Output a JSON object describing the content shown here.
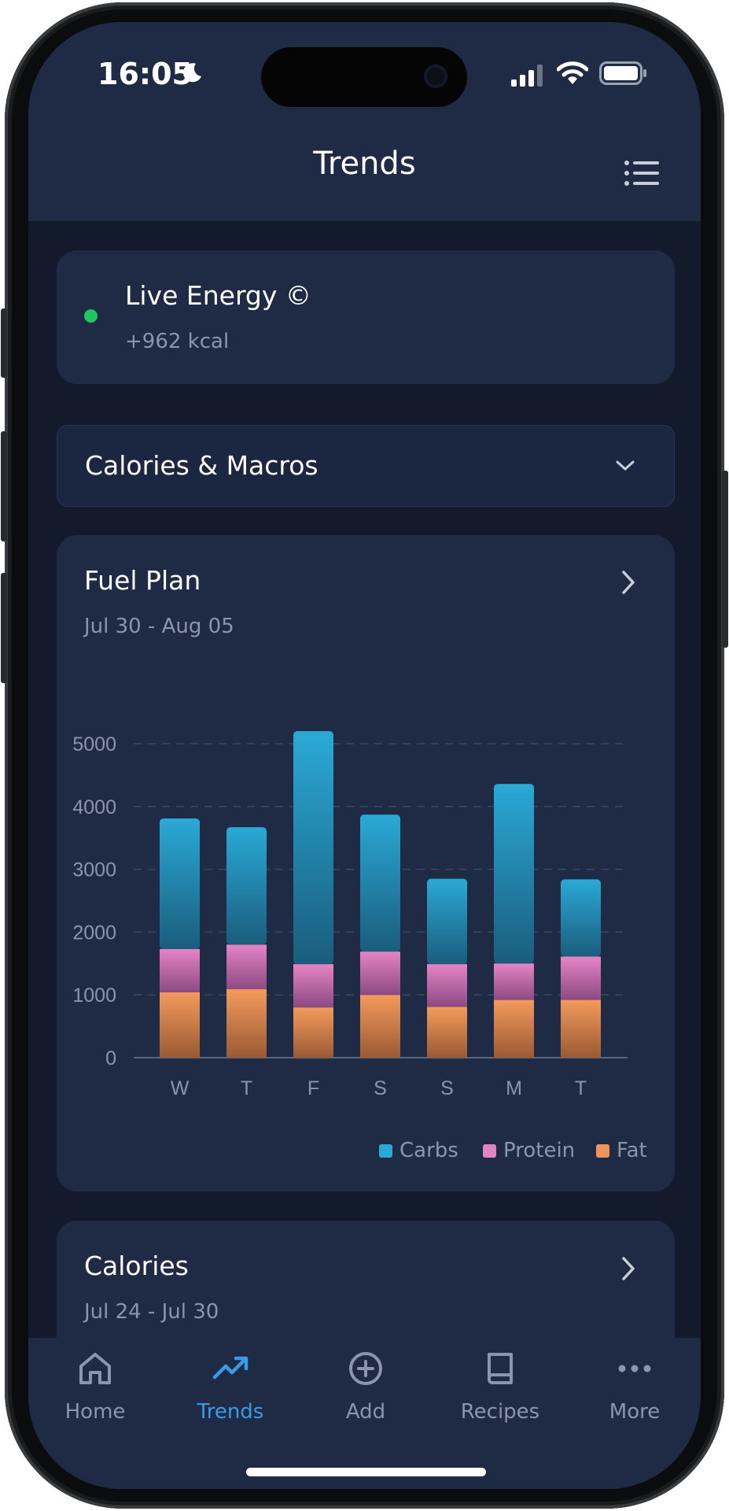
{
  "status_bar": {
    "time": "16:05"
  },
  "header": {
    "title": "Trends"
  },
  "live_energy": {
    "title": "Live Energy ©",
    "value": "+962 kcal",
    "dot_color": "#22c55e"
  },
  "dropdown": {
    "selected": "Calories & Macros"
  },
  "fuel_plan": {
    "title": "Fuel Plan",
    "range": "Jul 30 - Aug 05",
    "chart_data": {
      "type": "bar",
      "stacked": true,
      "categories": [
        "W",
        "T",
        "F",
        "S",
        "S",
        "M",
        "T"
      ],
      "series": [
        {
          "name": "Fat",
          "color": "#f0955a",
          "values": [
            1040,
            1090,
            800,
            1000,
            810,
            920,
            920
          ]
        },
        {
          "name": "Protein",
          "color": "#e283c4",
          "values": [
            690,
            710,
            690,
            690,
            680,
            580,
            690
          ]
        },
        {
          "name": "Carbs",
          "color": "#29a9d6",
          "values": [
            2080,
            1870,
            3710,
            2180,
            1360,
            2860,
            1230
          ]
        }
      ],
      "y_ticks": [
        "0",
        "1000",
        "2000",
        "3000",
        "4000",
        "5000"
      ],
      "ylim": [
        0,
        5000
      ],
      "grid": "dashed horizontal",
      "legend_position": "bottom-right"
    }
  },
  "calories_card": {
    "title": "Calories",
    "range": "Jul 24 - Jul 30"
  },
  "tabbar": {
    "active_color": "#3b9ae6",
    "items": [
      {
        "label": "Home",
        "icon": "home-icon"
      },
      {
        "label": "Trends",
        "icon": "trending-up-icon"
      },
      {
        "label": "Add",
        "icon": "add-circle-icon"
      },
      {
        "label": "Recipes",
        "icon": "book-icon"
      },
      {
        "label": "More",
        "icon": "more-icon"
      }
    ]
  }
}
